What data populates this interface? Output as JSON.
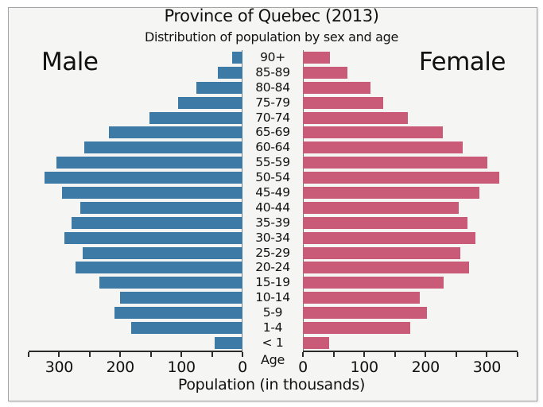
{
  "header": {
    "title": "Province of Quebec (2013)",
    "subtitle": "Distribution of population by sex and age"
  },
  "labels": {
    "male": "Male",
    "female": "Female",
    "age_axis": "Age",
    "xlabel": "Population (in thousands)"
  },
  "colors": {
    "male_bar": "#3d7aa5",
    "female_bar": "#ca5b78",
    "background": "#f5f5f4",
    "frame_border": "#a3a3a3",
    "axis": "#2b2b2b",
    "text": "#111111"
  },
  "chart_data": {
    "type": "bar",
    "subtype": "population-pyramid",
    "title": "Province of Quebec (2013)",
    "subtitle": "Distribution of population by sex and age",
    "xlabel": "Population (in thousands)",
    "age_axis_label": "Age",
    "units": "thousands",
    "xlim": [
      0,
      350
    ],
    "xticks": [
      0,
      50,
      100,
      150,
      200,
      250,
      300,
      350
    ],
    "xtick_labeled": [
      0,
      100,
      200,
      300
    ],
    "grid": false,
    "legend_position": "none",
    "categories": [
      "90+",
      "85-89",
      "80-84",
      "75-79",
      "70-74",
      "65-69",
      "60-64",
      "55-59",
      "50-54",
      "45-49",
      "40-44",
      "35-39",
      "30-34",
      "25-29",
      "20-24",
      "15-19",
      "10-14",
      "5-9",
      "1-4",
      "< 1"
    ],
    "series": [
      {
        "name": "Male",
        "side": "left",
        "values": [
          17,
          40,
          76,
          106,
          152,
          218,
          259,
          305,
          324,
          295,
          265,
          280,
          291,
          262,
          273,
          234,
          200,
          209,
          182,
          46
        ]
      },
      {
        "name": "Female",
        "side": "right",
        "values": [
          44,
          73,
          110,
          131,
          171,
          228,
          260,
          301,
          320,
          288,
          254,
          268,
          281,
          257,
          271,
          230,
          191,
          202,
          175,
          43
        ]
      }
    ]
  }
}
